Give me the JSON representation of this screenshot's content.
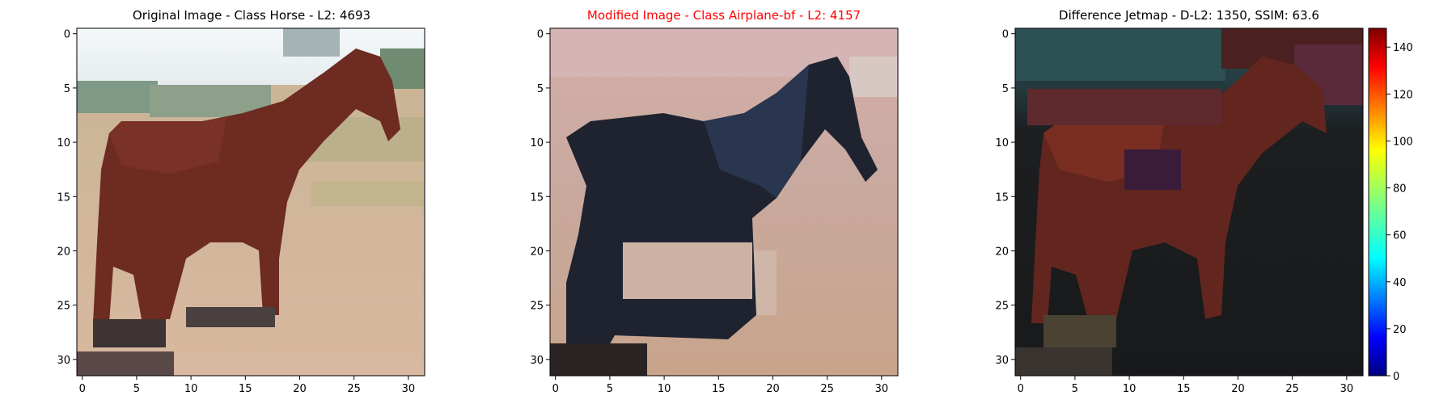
{
  "panels": [
    {
      "title": "Original Image - Class Horse - L2: 4693",
      "title_color": "#000000",
      "image": "pixelated photo of a brown horse standing on sandy ground with trees and bright sky behind",
      "image_desc_colors": {
        "sky": "#f0f4f8",
        "trees": "#8aa08a",
        "horse": "#6a2a22",
        "ground": "#d4b49c"
      }
    },
    {
      "title": "Modified Image - Class Airplane-bf - L2: 4157",
      "title_color": "#ff0000",
      "image": "pixelated photo of the same horse rendered in dark blue-black tones on a pinkish beige background",
      "image_desc_colors": {
        "background": "#d8b0a4",
        "horse": "#1c2230",
        "ground": "#c9a690"
      }
    },
    {
      "title": "Difference Jetmap - D-L2: 1350, SSIM: 63.6",
      "title_color": "#000000",
      "image": "pixelated difference map showing dark red-brown horse silhouette on dark teal and black background",
      "image_desc_colors": {
        "top": "#2a4a4c",
        "horse": "#6a2a1e",
        "background": "#1a1c1e"
      }
    }
  ],
  "axes": {
    "x_ticks": [
      "0",
      "5",
      "10",
      "15",
      "20",
      "25",
      "30"
    ],
    "y_ticks": [
      "0",
      "5",
      "10",
      "15",
      "20",
      "25",
      "30"
    ]
  },
  "colorbar": {
    "ticks": [
      "0",
      "20",
      "40",
      "60",
      "80",
      "100",
      "120",
      "140"
    ],
    "range": [
      0,
      148
    ],
    "colormap": "jet",
    "colors": [
      "#00007f",
      "#0000ff",
      "#007fff",
      "#00ffff",
      "#7fff7f",
      "#ffff00",
      "#ff7f00",
      "#ff0000",
      "#7f0000"
    ]
  }
}
